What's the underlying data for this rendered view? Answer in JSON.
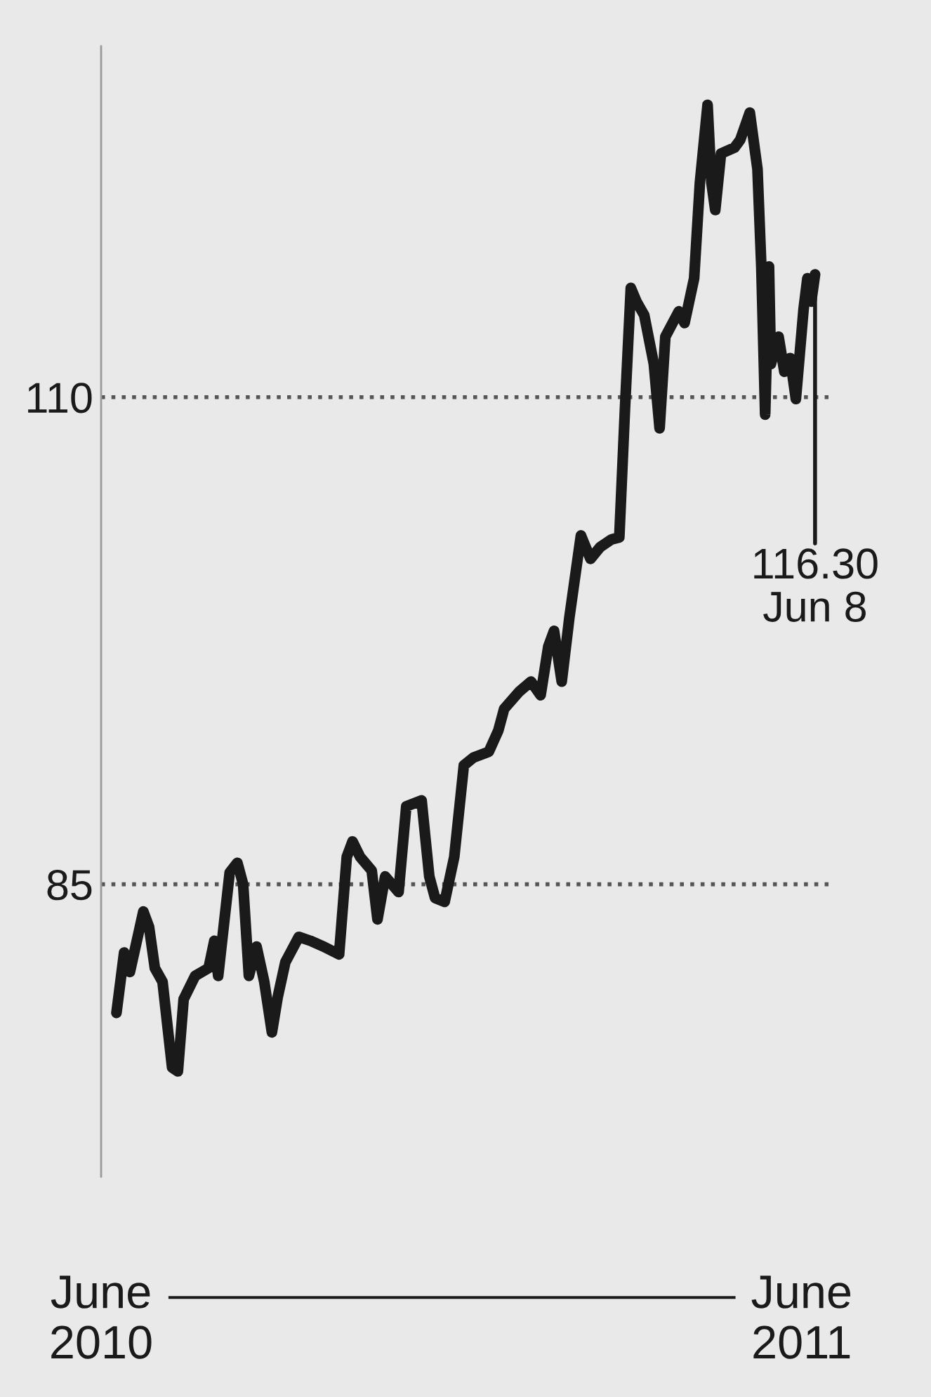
{
  "chart_data": {
    "type": "line",
    "x": [
      "2010-06-09",
      "2010-06-13",
      "2010-06-16",
      "2010-06-23",
      "2010-06-26",
      "2010-06-29",
      "2010-07-03",
      "2010-07-08",
      "2010-07-11",
      "2010-07-14",
      "2010-07-20",
      "2010-07-27",
      "2010-07-30",
      "2010-08-01",
      "2010-08-07",
      "2010-08-11",
      "2010-08-14",
      "2010-08-17",
      "2010-08-21",
      "2010-08-25",
      "2010-08-29",
      "2010-09-01",
      "2010-09-05",
      "2010-09-12",
      "2010-09-18",
      "2010-09-25",
      "2010-10-03",
      "2010-10-07",
      "2010-10-10",
      "2010-10-14",
      "2010-10-20",
      "2010-10-23",
      "2010-10-27",
      "2010-11-03",
      "2010-11-07",
      "2010-11-15",
      "2010-11-19",
      "2010-11-22",
      "2010-11-27",
      "2010-12-02",
      "2010-12-07",
      "2010-12-12",
      "2010-12-20",
      "2010-12-25",
      "2010-12-28",
      "2011-01-05",
      "2011-01-11",
      "2011-01-16",
      "2011-01-20",
      "2011-01-23",
      "2011-01-27",
      "2011-01-31",
      "2011-02-06",
      "2011-02-11",
      "2011-02-16",
      "2011-02-22",
      "2011-02-26",
      "2011-03-01",
      "2011-03-04",
      "2011-03-07",
      "2011-03-11",
      "2011-03-16",
      "2011-03-19",
      "2011-03-22",
      "2011-03-29",
      "2011-04-01",
      "2011-04-06",
      "2011-04-09",
      "2011-04-13",
      "2011-04-15",
      "2011-04-17",
      "2011-04-20",
      "2011-04-27",
      "2011-04-30",
      "2011-05-05",
      "2011-05-09",
      "2011-05-11",
      "2011-05-13",
      "2011-05-15",
      "2011-05-16",
      "2011-05-20",
      "2011-05-23",
      "2011-05-26",
      "2011-05-29",
      "2011-06-02",
      "2011-06-04",
      "2011-06-06",
      "2011-06-08"
    ],
    "series": [
      {
        "color": "#1a1a1a",
        "values": [
          78.4,
          81.5,
          80.5,
          83.6,
          82.8,
          80.7,
          80.0,
          75.6,
          75.4,
          79.1,
          80.3,
          80.7,
          82.1,
          80.3,
          85.6,
          86.1,
          85.0,
          80.3,
          81.8,
          80.0,
          77.4,
          79.2,
          81.0,
          82.3,
          82.1,
          81.8,
          81.4,
          86.4,
          87.2,
          86.4,
          85.7,
          83.2,
          85.4,
          84.6,
          89.0,
          89.3,
          85.4,
          84.3,
          84.1,
          86.4,
          91.1,
          91.5,
          91.8,
          92.9,
          94.0,
          94.9,
          95.4,
          94.7,
          97.2,
          98.0,
          95.4,
          98.7,
          102.9,
          101.7,
          102.3,
          102.7,
          102.8,
          109.5,
          115.6,
          114.9,
          114.2,
          111.7,
          108.4,
          113.1,
          114.4,
          113.8,
          116.1,
          121.0,
          125.0,
          121.0,
          119.6,
          122.5,
          122.8,
          123.2,
          124.6,
          121.7,
          116.7,
          109.1,
          116.7,
          111.7,
          113.1,
          111.3,
          112.0,
          109.9,
          114.5,
          116.1,
          114.9,
          116.3
        ]
      }
    ],
    "xlim": [
      "2010-06-01",
      "2011-06-15"
    ],
    "xticks": [
      {
        "value": "2010-06-01",
        "label": "June\n2010"
      },
      {
        "value": "2011-06-01",
        "label": "June\n2011"
      }
    ],
    "ylim": [
      70,
      128
    ],
    "yticks": [
      85,
      110
    ],
    "grid": "y",
    "line_style": "solid",
    "annotations": [
      {
        "text": "116.30\nJun 8",
        "x": "2011-06-08",
        "y": 116.3
      }
    ]
  }
}
